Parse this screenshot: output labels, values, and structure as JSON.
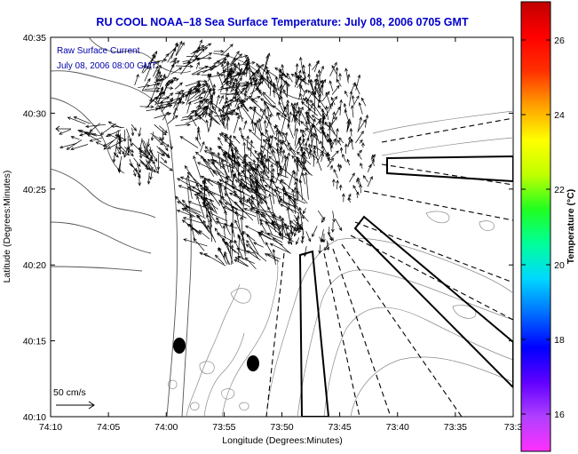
{
  "title": "RU COOL  NOAA–18  Sea Surface Temperature:  July 08, 2006 0705 GMT",
  "legend": {
    "line1": "Raw Surface Current",
    "line2": "July 08, 2006 08:00 GMT",
    "scale_label": "50 cm/s"
  },
  "axes": {
    "xlabel": "Longitude (Degrees:Minutes)",
    "ylabel": "Latitude (Degrees:Minutes)",
    "xticks": [
      "74:10",
      "74:05",
      "74:00",
      "73:55",
      "73:50",
      "73:45",
      "73:40",
      "73:35",
      "73:3"
    ],
    "yticks": [
      "40:35",
      "40:30",
      "40:25",
      "40:20",
      "40:15",
      "40:10"
    ]
  },
  "colorbar": {
    "label": "Temperature (°C)",
    "ticks": [
      "26",
      "24",
      "22",
      "20",
      "18",
      "16"
    ],
    "colors": [
      "#ff30ff",
      "#b040ff",
      "#6000ff",
      "#0000ff",
      "#0070ff",
      "#00d8ff",
      "#00ff9a",
      "#20ff20",
      "#c0ff00",
      "#ffff00",
      "#ffa000",
      "#ff3000",
      "#ff0000",
      "#c00000"
    ]
  },
  "map_marks": {
    "dots": 2
  }
}
